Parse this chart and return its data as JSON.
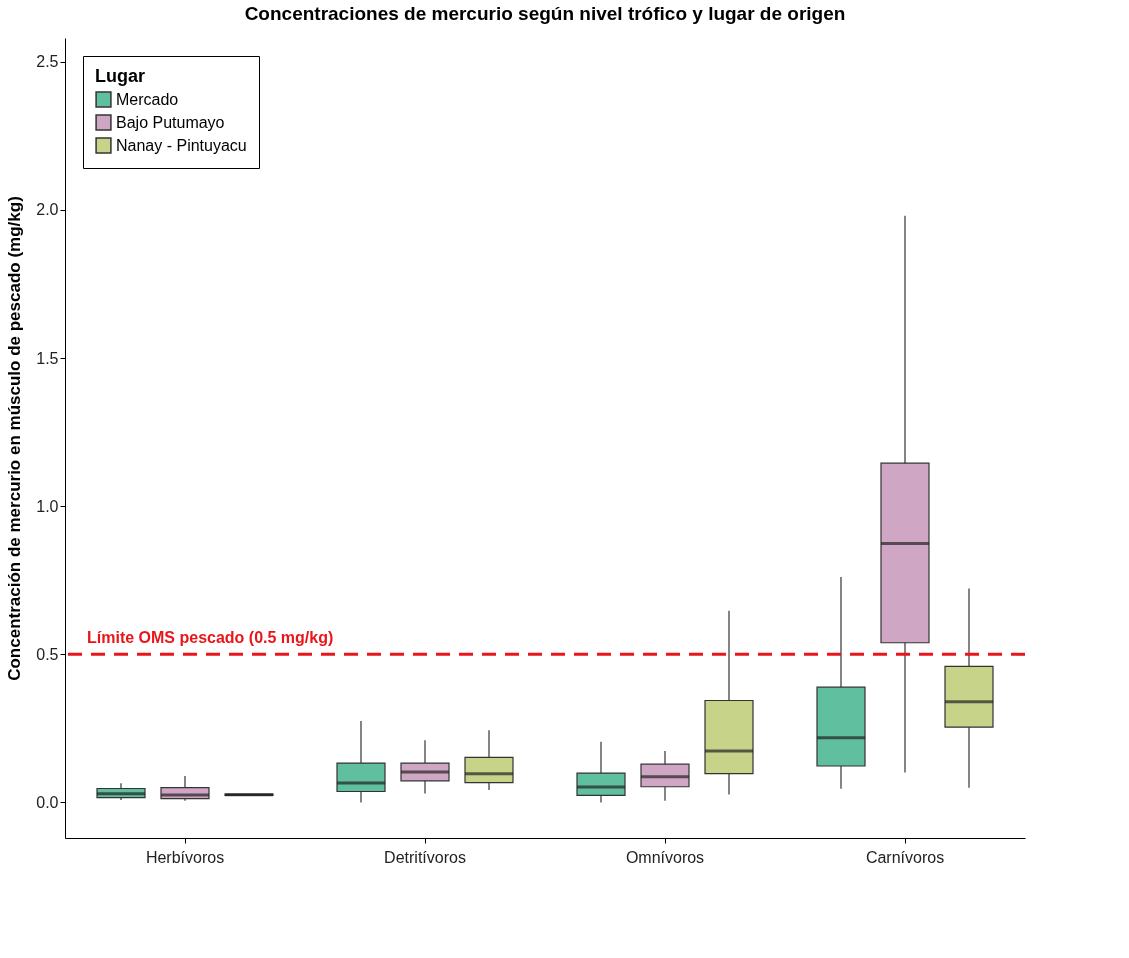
{
  "chart_data": {
    "type": "box",
    "title": "Concentraciones de mercurio según nivel trófico y lugar de origen",
    "ylabel": "Concentración de mercurio en músculo de pescado (mg/kg)",
    "legend_title": "Lugar",
    "categories": [
      "Herbívoros",
      "Detritívoros",
      "Omnívoros",
      "Carnívoros"
    ],
    "series": [
      {
        "name": "Mercado",
        "color": "#5fbf9f",
        "boxes": [
          {
            "low": 0.008,
            "q1": 0.016,
            "median": 0.029,
            "q3": 0.047,
            "high": 0.065
          },
          {
            "low": 0.0,
            "q1": 0.037,
            "median": 0.066,
            "q3": 0.133,
            "high": 0.275
          },
          {
            "low": 0.0,
            "q1": 0.024,
            "median": 0.052,
            "q3": 0.099,
            "high": 0.205
          },
          {
            "low": 0.046,
            "q1": 0.123,
            "median": 0.218,
            "q3": 0.389,
            "high": 0.761
          }
        ]
      },
      {
        "name": "Bajo Putumayo",
        "color": "#cfa6c4",
        "boxes": [
          {
            "low": 0.006,
            "q1": 0.013,
            "median": 0.025,
            "q3": 0.05,
            "high": 0.089
          },
          {
            "low": 0.03,
            "q1": 0.073,
            "median": 0.103,
            "q3": 0.133,
            "high": 0.21
          },
          {
            "low": 0.006,
            "q1": 0.053,
            "median": 0.087,
            "q3": 0.129,
            "high": 0.174
          },
          {
            "low": 0.101,
            "q1": 0.539,
            "median": 0.874,
            "q3": 1.145,
            "high": 1.98
          }
        ]
      },
      {
        "name": "Nanay - Pintuyacu",
        "color": "#c8d38a",
        "boxes": [
          {
            "low": 0.024,
            "q1": 0.024,
            "median": 0.026,
            "q3": 0.028,
            "high": 0.028
          },
          {
            "low": 0.042,
            "q1": 0.067,
            "median": 0.097,
            "q3": 0.152,
            "high": 0.244
          },
          {
            "low": 0.027,
            "q1": 0.097,
            "median": 0.174,
            "q3": 0.344,
            "high": 0.647
          },
          {
            "low": 0.05,
            "q1": 0.254,
            "median": 0.34,
            "q3": 0.459,
            "high": 0.722
          }
        ]
      }
    ],
    "ylim": [
      -0.12,
      2.58
    ],
    "yticks": [
      {
        "value": 0,
        "label": "0.0"
      },
      0.5,
      {
        "value": 1,
        "label": "1.0"
      },
      1.5,
      {
        "value": 2,
        "label": "2.0"
      },
      2.5
    ],
    "ref_lines": [
      {
        "axis": "y",
        "value": 0.5,
        "label": "Límite OMS pescado (0.5 mg/kg)",
        "color": "#e8161b",
        "line_style": "dashed"
      }
    ],
    "grid": false,
    "legend": "top left"
  }
}
